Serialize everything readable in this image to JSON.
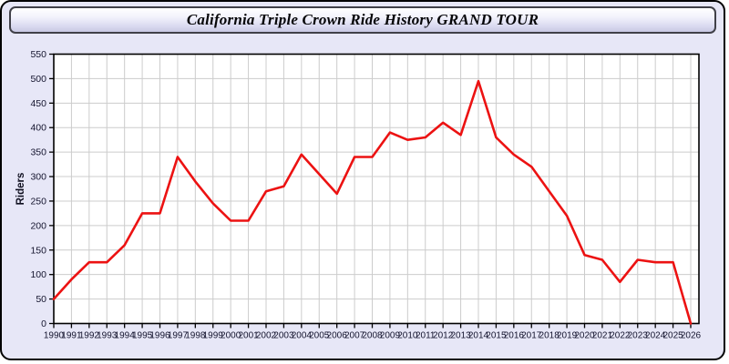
{
  "page": {
    "title": "California Triple Crown Ride History GRAND TOUR"
  },
  "colors": {
    "page_bg": "#E7E7F7",
    "plot_bg": "#FFFFFF",
    "grid": "#CCCCCC",
    "plot_border": "#000000",
    "axis_text": "#14142E",
    "line": "#EC1212"
  },
  "chart_data": {
    "type": "line",
    "title": "California Triple Crown Ride History GRAND TOUR",
    "xlabel": "",
    "ylabel": "Riders",
    "x": [
      1990,
      1991,
      1992,
      1993,
      1994,
      1995,
      1996,
      1997,
      1998,
      1999,
      2000,
      2001,
      2002,
      2003,
      2004,
      2005,
      2006,
      2007,
      2008,
      2009,
      2010,
      2011,
      2012,
      2013,
      2014,
      2015,
      2016,
      2017,
      2018,
      2019,
      2020,
      2021,
      2022,
      2023,
      2024,
      2025,
      2026
    ],
    "series": [
      {
        "name": "Riders",
        "values": [
          50,
          90,
          125,
          125,
          160,
          225,
          225,
          340,
          290,
          245,
          210,
          210,
          270,
          280,
          345,
          305,
          265,
          340,
          340,
          390,
          375,
          380,
          410,
          385,
          495,
          380,
          345,
          320,
          270,
          220,
          140,
          130,
          85,
          130,
          125,
          125,
          0
        ]
      }
    ],
    "ylim": [
      0,
      550
    ],
    "ytick_step": 50,
    "grid": true,
    "legend_position": "none",
    "line_color": "#EC1212"
  }
}
